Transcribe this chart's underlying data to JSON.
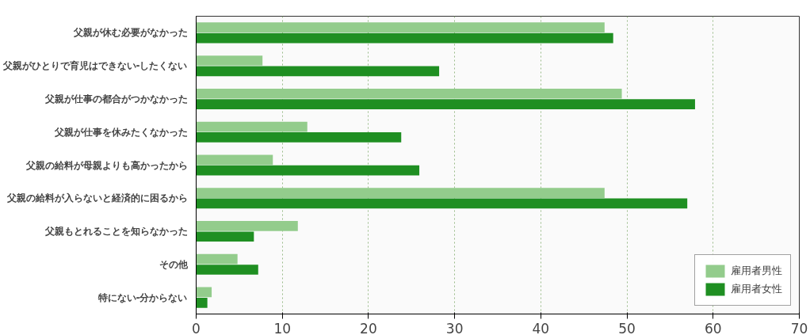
{
  "chart_data": {
    "type": "bar",
    "orientation": "horizontal",
    "categories": [
      "父親が休む必要がなかった",
      "父親がひとりで育児はできない-したくない",
      "父親が仕事の都合がつかなかった",
      "父親が仕事を休みたくなかった",
      "父親の給料が母親よりも高かったから",
      "父親の給料が入らないと経済的に困るから",
      "父親もとれることを知らなかった",
      "その他",
      "特にない-分からない"
    ],
    "series": [
      {
        "name": "雇用者男性",
        "color": "#93cc8c",
        "values": [
          47.4,
          7.7,
          49.4,
          12.9,
          8.9,
          47.4,
          11.8,
          4.8,
          1.8
        ]
      },
      {
        "name": "雇用者女性",
        "color": "#1f8f22",
        "values": [
          48.4,
          28.2,
          57.9,
          23.8,
          25.9,
          57.0,
          6.7,
          7.2,
          1.3
        ]
      }
    ],
    "xlim": [
      0,
      70
    ],
    "xticks": [
      0,
      10,
      20,
      30,
      40,
      50,
      60,
      70
    ],
    "grid": "x",
    "legend": "bottom right"
  }
}
